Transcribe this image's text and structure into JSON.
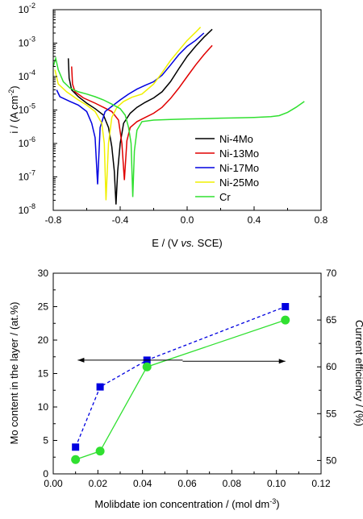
{
  "chart_data": [
    {
      "type": "line",
      "ylog": true,
      "xlabel_parts": [
        "E / (V ",
        "vs.",
        " SCE)"
      ],
      "ylabel_parts": [
        "i / (A cm",
        "-2",
        ")"
      ],
      "xlim": [
        -0.8,
        0.8
      ],
      "ylim": [
        1e-08,
        0.01
      ],
      "xticks": [
        "-0.8",
        "-0.4",
        "0.0",
        "0.4",
        "0.8"
      ],
      "xtick_values": [
        -0.8,
        -0.4,
        0.0,
        0.4,
        0.8
      ],
      "ytick_mantissa": "10",
      "ytick_exponents": [
        "-8",
        "-7",
        "-6",
        "-5",
        "-4",
        "-3",
        "-2"
      ],
      "ytick_values": [
        1e-08,
        1e-07,
        1e-06,
        1e-05,
        0.0001,
        0.001,
        0.01
      ],
      "legend_position": "bottom-right",
      "series": [
        {
          "name": "Ni-4Mo",
          "color": "#000000",
          "points": [
            [
              -0.71,
              0.00035
            ],
            [
              -0.705,
              9e-05
            ],
            [
              -0.69,
              4e-05
            ],
            [
              -0.65,
              2.5e-05
            ],
            [
              -0.6,
              1.6e-05
            ],
            [
              -0.55,
              1.1e-05
            ],
            [
              -0.5,
              7e-06
            ],
            [
              -0.47,
              3e-06
            ],
            [
              -0.45,
              8e-07
            ],
            [
              -0.435,
              1.5e-07
            ],
            [
              -0.425,
              1.5e-08
            ],
            [
              -0.415,
              1.5e-07
            ],
            [
              -0.4,
              1e-06
            ],
            [
              -0.38,
              4e-06
            ],
            [
              -0.34,
              8e-06
            ],
            [
              -0.3,
              1.2e-05
            ],
            [
              -0.25,
              1.7e-05
            ],
            [
              -0.2,
              2.3e-05
            ],
            [
              -0.15,
              3.5e-05
            ],
            [
              -0.1,
              7e-05
            ],
            [
              -0.05,
              0.00017
            ],
            [
              0.0,
              0.0004
            ],
            [
              0.05,
              0.0008
            ],
            [
              0.1,
              0.0015
            ],
            [
              0.15,
              0.0026
            ]
          ]
        },
        {
          "name": "Ni-13Mo",
          "color": "#e00000",
          "points": [
            [
              -0.69,
              0.0002
            ],
            [
              -0.685,
              6e-05
            ],
            [
              -0.67,
              3.5e-05
            ],
            [
              -0.62,
              2.3e-05
            ],
            [
              -0.55,
              1.6e-05
            ],
            [
              -0.5,
              1.2e-05
            ],
            [
              -0.45,
              9e-06
            ],
            [
              -0.41,
              5e-06
            ],
            [
              -0.39,
              1e-06
            ],
            [
              -0.375,
              8e-08
            ],
            [
              -0.36,
              1.2e-06
            ],
            [
              -0.34,
              3e-06
            ],
            [
              -0.3,
              4.5e-06
            ],
            [
              -0.25,
              6e-06
            ],
            [
              -0.2,
              8e-06
            ],
            [
              -0.15,
              1.2e-05
            ],
            [
              -0.1,
              2.2e-05
            ],
            [
              -0.05,
              4.5e-05
            ],
            [
              0.0,
              0.0001
            ],
            [
              0.05,
              0.00022
            ],
            [
              0.1,
              0.00045
            ],
            [
              0.15,
              0.00085
            ]
          ]
        },
        {
          "name": "Ni-17Mo",
          "color": "#0000e0",
          "points": [
            [
              -0.78,
              4e-05
            ],
            [
              -0.76,
              2.5e-05
            ],
            [
              -0.7,
              1.8e-05
            ],
            [
              -0.65,
              1.4e-05
            ],
            [
              -0.6,
              9e-06
            ],
            [
              -0.57,
              4e-06
            ],
            [
              -0.55,
              1.5e-06
            ],
            [
              -0.535,
              6e-08
            ],
            [
              -0.52,
              3e-06
            ],
            [
              -0.49,
              9e-06
            ],
            [
              -0.44,
              1.4e-05
            ],
            [
              -0.4,
              2e-05
            ],
            [
              -0.35,
              3e-05
            ],
            [
              -0.3,
              4.2e-05
            ],
            [
              -0.25,
              5.5e-05
            ],
            [
              -0.2,
              7e-05
            ],
            [
              -0.15,
              0.00011
            ],
            [
              -0.1,
              0.00022
            ],
            [
              -0.05,
              0.00045
            ],
            [
              0.0,
              0.0008
            ],
            [
              0.05,
              0.0012
            ],
            [
              0.1,
              0.002
            ]
          ]
        },
        {
          "name": "Ni-25Mo",
          "color": "#f0f000",
          "points": [
            [
              -0.79,
              0.00016
            ],
            [
              -0.77,
              6e-05
            ],
            [
              -0.72,
              3.5e-05
            ],
            [
              -0.65,
              2e-05
            ],
            [
              -0.6,
              1.4e-05
            ],
            [
              -0.55,
              9e-06
            ],
            [
              -0.51,
              4e-06
            ],
            [
              -0.495,
              1e-06
            ],
            [
              -0.485,
              2e-08
            ],
            [
              -0.47,
              1e-06
            ],
            [
              -0.45,
              6e-06
            ],
            [
              -0.42,
              1.2e-05
            ],
            [
              -0.38,
              1.8e-05
            ],
            [
              -0.33,
              2.4e-05
            ],
            [
              -0.27,
              3e-05
            ],
            [
              -0.2,
              6e-05
            ],
            [
              -0.15,
              0.00013
            ],
            [
              -0.1,
              0.0003
            ],
            [
              -0.05,
              0.0006
            ],
            [
              0.0,
              0.0012
            ],
            [
              0.05,
              0.0021
            ],
            [
              0.08,
              0.003
            ]
          ]
        },
        {
          "name": "Cr",
          "color": "#30e030",
          "points": [
            [
              -0.8,
              0.0002
            ],
            [
              -0.785,
              0.00035
            ],
            [
              -0.77,
              0.00016
            ],
            [
              -0.74,
              7e-05
            ],
            [
              -0.7,
              4.5e-05
            ],
            [
              -0.65,
              3.5e-05
            ],
            [
              -0.6,
              3e-05
            ],
            [
              -0.55,
              2.5e-05
            ],
            [
              -0.5,
              2e-05
            ],
            [
              -0.45,
              1.5e-05
            ],
            [
              -0.4,
              1.1e-05
            ],
            [
              -0.37,
              7e-06
            ],
            [
              -0.35,
              3e-06
            ],
            [
              -0.335,
              1e-06
            ],
            [
              -0.325,
              2.5e-08
            ],
            [
              -0.315,
              6e-07
            ],
            [
              -0.3,
              2.5e-06
            ],
            [
              -0.27,
              4.5e-06
            ],
            [
              -0.2,
              5e-06
            ],
            [
              -0.1,
              5.2e-06
            ],
            [
              0.0,
              5.4e-06
            ],
            [
              0.1,
              5.5e-06
            ],
            [
              0.2,
              5.7e-06
            ],
            [
              0.3,
              5.8e-06
            ],
            [
              0.4,
              6e-06
            ],
            [
              0.5,
              6.3e-06
            ],
            [
              0.55,
              6.8e-06
            ],
            [
              0.6,
              8.5e-06
            ],
            [
              0.65,
              1.2e-05
            ],
            [
              0.7,
              1.8e-05
            ]
          ]
        }
      ]
    },
    {
      "type": "scatter",
      "xlabel_parts": [
        "Molibdate ion concentration / (mol dm",
        "-3",
        ")"
      ],
      "ylabel": "Mo content in the layer / (at.%)",
      "y2label": "Current efficiency / (%)",
      "xlim": [
        0,
        0.12
      ],
      "ylim": [
        0,
        30
      ],
      "y2lim": [
        48.57,
        70
      ],
      "xticks": [
        "0.00",
        "0.02",
        "0.04",
        "0.06",
        "0.08",
        "0.10",
        "0.12"
      ],
      "xtick_values": [
        0,
        0.02,
        0.04,
        0.06,
        0.08,
        0.1,
        0.12
      ],
      "yticks": [
        "0",
        "5",
        "10",
        "15",
        "20",
        "25",
        "30"
      ],
      "ytick_values": [
        0,
        5,
        10,
        15,
        20,
        25,
        30
      ],
      "y2ticks": [
        "50",
        "55",
        "60",
        "65",
        "70"
      ],
      "y2tick_values": [
        50,
        55,
        60,
        65,
        70
      ],
      "grid": false,
      "series": [
        {
          "name": "",
          "axis": "left",
          "color": "#0000e0",
          "marker": "square",
          "line": "dashed",
          "x": [
            0.01,
            0.021,
            0.042,
            0.104
          ],
          "values": [
            4,
            13,
            17,
            25
          ]
        },
        {
          "name": "",
          "axis": "right",
          "color": "#30e030",
          "marker": "circle",
          "line": "solid",
          "x": [
            0.01,
            0.021,
            0.042,
            0.104
          ],
          "values": [
            50.1,
            51,
            60,
            65
          ]
        }
      ],
      "annotations": [
        {
          "type": "arrow",
          "direction": "left",
          "from": [
            0.058,
            17
          ],
          "to": [
            0.011,
            17
          ]
        },
        {
          "type": "arrow",
          "direction": "right",
          "from": [
            0.058,
            60.6
          ],
          "to": [
            0.104,
            60.6
          ]
        }
      ]
    }
  ]
}
